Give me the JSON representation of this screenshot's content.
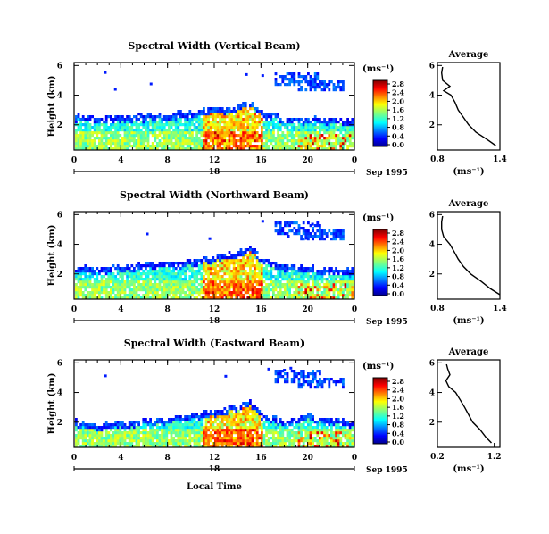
{
  "xlabel": "Local Time",
  "panels": [
    {
      "title": "Spectral Width (Vertical Beam)",
      "ylabel": "Height (km)",
      "x_ticks": [
        "0",
        "4",
        "8",
        "12",
        "16",
        "20",
        "0"
      ],
      "y_ticks": [
        "2",
        "4",
        "6"
      ],
      "date_label": "Sep 1995",
      "day_label": "18",
      "colorbar_unit": "(ms⁻¹)",
      "colorbar_ticks": [
        "0.0",
        "0.4",
        "0.8",
        "1.2",
        "1.6",
        "2.0",
        "2.4",
        "2.8"
      ],
      "average": {
        "title": "Average",
        "xlabel": "(ms⁻¹)",
        "x_ticks": [
          "0.8",
          "1.4"
        ],
        "y_ticks": [
          "2",
          "4",
          "6"
        ],
        "xlim": [
          0.8,
          1.4
        ],
        "ylim": [
          0.3,
          6.2
        ],
        "heights": [
          0.6,
          1.0,
          1.5,
          2.0,
          2.5,
          3.0,
          3.5,
          4.0,
          4.3,
          4.6,
          5.0,
          5.5,
          5.9
        ],
        "values": [
          1.36,
          1.28,
          1.17,
          1.1,
          1.05,
          1.0,
          0.97,
          0.93,
          0.86,
          0.92,
          0.85,
          0.84,
          0.85
        ]
      }
    },
    {
      "title": "Spectral Width (Northward Beam)",
      "ylabel": "Height (km)",
      "x_ticks": [
        "0",
        "4",
        "8",
        "12",
        "16",
        "20",
        "0"
      ],
      "y_ticks": [
        "2",
        "4",
        "6"
      ],
      "date_label": "Sep 1995",
      "day_label": "18",
      "colorbar_unit": "(ms⁻¹)",
      "colorbar_ticks": [
        "0.0",
        "0.4",
        "0.8",
        "1.2",
        "1.6",
        "2.0",
        "2.4",
        "2.8"
      ],
      "average": {
        "title": "Average",
        "xlabel": "(ms⁻¹)",
        "x_ticks": [
          "0.8",
          "1.4"
        ],
        "y_ticks": [
          "2",
          "4",
          "6"
        ],
        "xlim": [
          0.8,
          1.4
        ],
        "ylim": [
          0.3,
          6.2
        ],
        "heights": [
          0.6,
          1.0,
          1.5,
          2.0,
          2.5,
          3.0,
          3.5,
          4.0,
          4.5,
          5.0,
          5.5,
          5.9
        ],
        "values": [
          1.4,
          1.31,
          1.22,
          1.12,
          1.05,
          1.0,
          0.96,
          0.92,
          0.86,
          0.84,
          0.84,
          0.85
        ]
      }
    },
    {
      "title": "Spectral Width (Eastward Beam)",
      "ylabel": "Height (km)",
      "x_ticks": [
        "0",
        "4",
        "8",
        "12",
        "16",
        "20",
        "0"
      ],
      "y_ticks": [
        "2",
        "4",
        "6"
      ],
      "date_label": "Sep 1995",
      "day_label": "18",
      "colorbar_unit": "(ms⁻¹)",
      "colorbar_ticks": [
        "0.0",
        "0.4",
        "0.8",
        "1.2",
        "1.6",
        "2.0",
        "2.4",
        "2.8"
      ],
      "average": {
        "title": "Average",
        "xlabel": "(ms⁻¹)",
        "x_ticks": [
          "0.2",
          "1.2"
        ],
        "y_ticks": [
          "2",
          "4",
          "6"
        ],
        "xlim": [
          0.2,
          1.3
        ],
        "ylim": [
          0.3,
          6.2
        ],
        "heights": [
          0.6,
          1.0,
          1.5,
          2.0,
          2.5,
          3.0,
          3.5,
          4.0,
          4.4,
          4.8,
          5.2,
          5.6,
          5.9
        ],
        "values": [
          1.15,
          1.05,
          0.95,
          0.82,
          0.75,
          0.68,
          0.6,
          0.52,
          0.4,
          0.35,
          0.42,
          0.38,
          0.36
        ]
      }
    }
  ],
  "chart_data": [
    {
      "type": "heatmap",
      "title": "Spectral Width (Vertical Beam)",
      "xlabel": "Local Time",
      "ylabel": "Height (km)",
      "xlim": [
        0,
        24
      ],
      "ylim": [
        0.3,
        6.2
      ],
      "zlabel": "(ms⁻¹)",
      "zlim": [
        0.0,
        3.0
      ],
      "cloud_top_profile": {
        "x": [
          0,
          2,
          4,
          6,
          8,
          10,
          12,
          14,
          15,
          16,
          18,
          20,
          22,
          24
        ],
        "y": [
          2.8,
          2.6,
          2.7,
          2.8,
          2.9,
          3.0,
          3.2,
          3.4,
          3.7,
          3.0,
          2.6,
          2.6,
          2.5,
          2.4
        ]
      }
    },
    {
      "type": "heatmap",
      "title": "Spectral Width (Northward Beam)",
      "xlabel": "Local Time",
      "ylabel": "Height (km)",
      "xlim": [
        0,
        24
      ],
      "ylim": [
        0.3,
        6.2
      ],
      "zlabel": "(ms⁻¹)",
      "zlim": [
        0.0,
        3.0
      ],
      "cloud_top_profile": {
        "x": [
          0,
          2,
          4,
          6,
          8,
          10,
          12,
          14,
          15,
          16,
          18,
          20,
          22,
          24
        ],
        "y": [
          2.6,
          2.5,
          2.6,
          2.8,
          2.9,
          3.0,
          3.3,
          3.6,
          4.0,
          3.1,
          2.7,
          2.6,
          2.5,
          2.4
        ]
      }
    },
    {
      "type": "heatmap",
      "title": "Spectral Width (Eastward Beam)",
      "xlabel": "Local Time",
      "ylabel": "Height (km)",
      "xlim": [
        0,
        24
      ],
      "ylim": [
        0.3,
        6.2
      ],
      "zlabel": "(ms⁻¹)",
      "zlim": [
        0.0,
        3.0
      ],
      "cloud_top_profile": {
        "x": [
          0,
          2,
          4,
          6,
          8,
          10,
          12,
          14,
          15,
          16,
          18,
          20,
          22,
          24
        ],
        "y": [
          2.2,
          2.0,
          2.1,
          2.3,
          2.4,
          2.6,
          2.9,
          3.3,
          3.6,
          2.7,
          2.2,
          2.6,
          2.3,
          2.2
        ]
      }
    }
  ]
}
